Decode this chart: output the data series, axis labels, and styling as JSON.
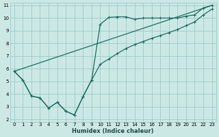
{
  "xlabel": "Humidex (Indice chaleur)",
  "bg_color": "#cce8e5",
  "grid_color": "#99ccc8",
  "line_color": "#1a6b60",
  "xlim": [
    -0.5,
    23.5
  ],
  "ylim": [
    1.8,
    11.2
  ],
  "xticks": [
    0,
    1,
    2,
    3,
    4,
    5,
    6,
    7,
    8,
    9,
    10,
    11,
    12,
    13,
    14,
    15,
    16,
    17,
    18,
    19,
    20,
    21,
    22,
    23
  ],
  "yticks": [
    2,
    3,
    4,
    5,
    6,
    7,
    8,
    9,
    10,
    11
  ],
  "line1_x": [
    0,
    1,
    2,
    3,
    4,
    5,
    6,
    7,
    8,
    9,
    10,
    11,
    12,
    13,
    14,
    15,
    16,
    17,
    18,
    19,
    20,
    21,
    22,
    23
  ],
  "line1_y": [
    5.8,
    5.1,
    3.85,
    3.7,
    2.9,
    3.35,
    2.65,
    2.35,
    3.8,
    5.1,
    9.5,
    10.05,
    10.1,
    10.1,
    9.9,
    10.0,
    10.0,
    10.0,
    10.0,
    10.0,
    10.15,
    10.25,
    10.8,
    11.0
  ],
  "line2_x": [
    0,
    23
  ],
  "line2_y": [
    5.8,
    11.0
  ],
  "line3_x": [
    0,
    1,
    2,
    3,
    4,
    5,
    6,
    7,
    8,
    9,
    10,
    11,
    12,
    13,
    14,
    15,
    16,
    17,
    18,
    19,
    20,
    21,
    22,
    23
  ],
  "line3_y": [
    5.8,
    5.1,
    3.85,
    3.7,
    2.9,
    3.35,
    2.65,
    2.35,
    3.8,
    5.1,
    6.35,
    6.77,
    7.2,
    7.6,
    7.9,
    8.15,
    8.4,
    8.62,
    8.85,
    9.1,
    9.4,
    9.7,
    10.25,
    10.7
  ]
}
